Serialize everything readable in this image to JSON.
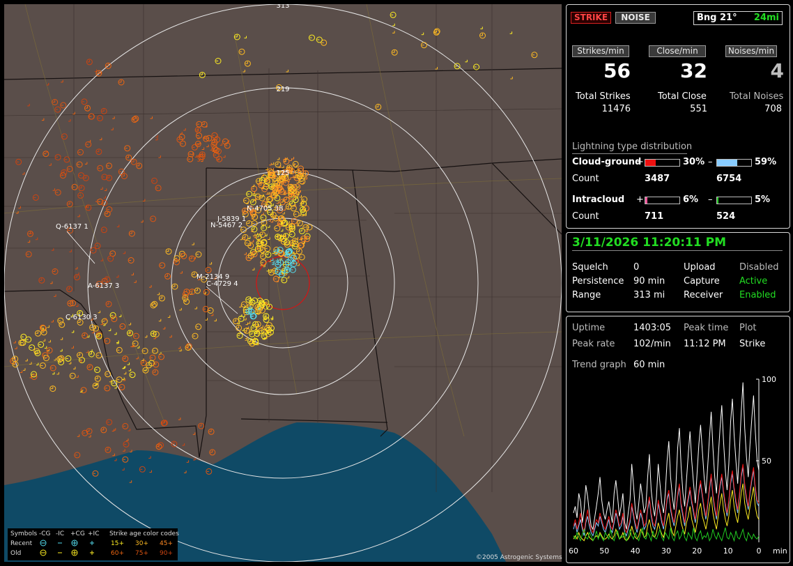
{
  "map": {
    "range_labels": [
      "313",
      "219",
      "125"
    ],
    "strike_labels": [
      "Q-6137 1",
      "N-4705 38",
      "J-5839 1",
      "N-5467 2",
      "A-6137 3",
      "M-2134 9",
      "C-4729 4",
      "C-6130 3"
    ],
    "legend": {
      "symbols_label": "Symbols",
      "types": [
        "-CG",
        "-IC",
        "+CG",
        "+IC"
      ],
      "age_title": "Strike age color codes",
      "recent_label": "Recent",
      "old_label": "Old",
      "recent_ages": [
        "15+",
        "30+",
        "45+"
      ],
      "old_ages": [
        "60+",
        "75+",
        "90+"
      ],
      "age_colors": [
        "#ffee22",
        "#ffbb22",
        "#ff8822",
        "#ee6611",
        "#dd5511",
        "#cc4411"
      ]
    },
    "copyright": "©2005 Astrogenic Systems",
    "colors": {
      "land": "#5a4e4a",
      "water": "#0f4a66",
      "ring": "#e8e8e8"
    }
  },
  "mode": {
    "strike_label": "STRIKE",
    "noise_label": "NOISE",
    "bearing_label": "Bng 21°",
    "distance": "24mi"
  },
  "rates": {
    "strikes_label": "Strikes/min",
    "strikes": "56",
    "close_label": "Close/min",
    "close": "32",
    "noises_label": "Noises/min",
    "noises": "4"
  },
  "totals": {
    "strikes_label": "Total Strikes",
    "strikes": "11476",
    "close_label": "Total Close",
    "close": "551",
    "noises_label": "Total Noises",
    "noises": "708"
  },
  "distribution": {
    "title": "Lightning type distribution",
    "cg_label": "Cloud-ground",
    "cg_pos_pct": "30%",
    "cg_pos_fraction": 0.3,
    "cg_neg_pct": "59%",
    "cg_neg_fraction": 0.59,
    "count_label": "Count",
    "cg_pos_count": "3487",
    "cg_neg_count": "6754",
    "ic_label": "Intracloud",
    "ic_pos_pct": "6%",
    "ic_pos_fraction": 0.06,
    "ic_neg_pct": "5%",
    "ic_neg_fraction": 0.05,
    "ic_pos_count": "711",
    "ic_neg_count": "524",
    "plus": "+",
    "minus": "–",
    "colors": {
      "cg_pos": "#ee1111",
      "cg_neg": "#88ccff",
      "ic_pos": "#ee5599",
      "ic_neg": "#22cc22"
    }
  },
  "status": {
    "datetime": "3/11/2026 11:20:11 PM",
    "squelch_label": "Squelch",
    "squelch": "0",
    "persistence_label": "Persistence",
    "persistence": "90 min",
    "range_label": "Range",
    "range": "313 mi",
    "upload_label": "Upload",
    "upload": "Disabled",
    "capture_label": "Capture",
    "capture": "Active",
    "receiver_label": "Receiver",
    "receiver": "Enabled"
  },
  "stats": {
    "uptime_label": "Uptime",
    "uptime": "1403:05",
    "peak_time_label": "Peak time",
    "peak_time": "11:12 PM",
    "plot_label": "Plot",
    "plot": "Strike",
    "peak_rate_label": "Peak rate",
    "peak_rate": "102/min",
    "trend_label": "Trend graph",
    "trend": "60 min"
  },
  "trend": {
    "y_ticks": [
      "100",
      "50"
    ],
    "x_ticks": [
      "60",
      "50",
      "40",
      "30",
      "20",
      "10",
      "0"
    ],
    "x_unit": "min",
    "series": [
      {
        "color": "#ffffff",
        "values": [
          18,
          22,
          15,
          30,
          25,
          12,
          20,
          35,
          28,
          18,
          10,
          8,
          15,
          22,
          30,
          40,
          26,
          18,
          14,
          20,
          25,
          18,
          12,
          30,
          38,
          28,
          16,
          22,
          30,
          12,
          8,
          18,
          26,
          48,
          35,
          20,
          14,
          24,
          36,
          28,
          18,
          22,
          40,
          54,
          32,
          22,
          16,
          28,
          48,
          36,
          24,
          18,
          30,
          50,
          62,
          40,
          28,
          20,
          34,
          58,
          70,
          46,
          30,
          22,
          38,
          54,
          68,
          50,
          36,
          24,
          42,
          60,
          72,
          56,
          40,
          30,
          46,
          64,
          80,
          58,
          40,
          30,
          52,
          70,
          84,
          62,
          44,
          32,
          48,
          74,
          88,
          66,
          50,
          36,
          56,
          80,
          98,
          70,
          52,
          40,
          60,
          76,
          90,
          68,
          50,
          44
        ]
      },
      {
        "color": "#88ccff",
        "values": [
          8,
          12,
          6,
          10,
          14,
          8,
          4,
          12,
          16,
          10,
          6,
          4,
          8,
          12,
          10,
          16,
          12,
          8,
          6,
          10,
          14,
          8,
          6,
          12,
          18,
          14,
          8,
          10,
          16,
          6,
          4,
          8,
          12,
          22,
          16,
          10,
          6,
          12,
          18,
          14,
          8,
          10,
          20,
          26,
          16,
          10,
          8,
          14,
          24,
          18,
          12,
          8,
          16,
          26,
          30,
          20,
          14,
          10,
          18,
          28,
          34,
          22,
          16,
          10,
          20,
          26,
          32,
          24,
          18,
          12,
          20,
          30,
          36,
          28,
          20,
          14,
          22,
          32,
          40,
          28,
          20,
          14,
          26,
          34,
          40,
          30,
          22,
          16,
          24,
          36,
          42,
          32,
          24,
          18,
          28,
          40,
          46,
          34,
          26,
          20,
          30,
          38,
          44,
          32,
          24,
          22
        ]
      },
      {
        "color": "#ee1111",
        "values": [
          10,
          14,
          8,
          12,
          18,
          10,
          6,
          14,
          20,
          12,
          8,
          6,
          10,
          14,
          12,
          18,
          14,
          10,
          8,
          12,
          16,
          10,
          8,
          14,
          20,
          16,
          10,
          12,
          18,
          8,
          6,
          10,
          14,
          24,
          18,
          12,
          8,
          14,
          20,
          16,
          10,
          12,
          22,
          28,
          18,
          12,
          10,
          16,
          26,
          20,
          14,
          10,
          18,
          28,
          32,
          22,
          16,
          12,
          20,
          30,
          36,
          24,
          18,
          12,
          22,
          28,
          34,
          26,
          20,
          14,
          22,
          32,
          38,
          30,
          22,
          16,
          24,
          34,
          42,
          30,
          22,
          16,
          28,
          36,
          42,
          32,
          24,
          18,
          26,
          38,
          44,
          34,
          26,
          20,
          30,
          42,
          48,
          36,
          28,
          22,
          32,
          40,
          46,
          34,
          26,
          24
        ]
      },
      {
        "color": "#ffee22",
        "values": [
          2,
          4,
          2,
          6,
          3,
          2,
          1,
          4,
          6,
          3,
          2,
          1,
          3,
          4,
          3,
          6,
          4,
          2,
          2,
          3,
          5,
          3,
          2,
          4,
          8,
          5,
          2,
          3,
          6,
          2,
          1,
          2,
          4,
          10,
          6,
          3,
          2,
          4,
          8,
          6,
          3,
          4,
          10,
          14,
          8,
          4,
          3,
          6,
          12,
          8,
          5,
          3,
          8,
          14,
          18,
          10,
          6,
          4,
          10,
          16,
          20,
          12,
          8,
          5,
          12,
          16,
          22,
          14,
          10,
          6,
          12,
          20,
          24,
          16,
          12,
          8,
          14,
          22,
          28,
          18,
          12,
          8,
          16,
          24,
          30,
          20,
          14,
          10,
          16,
          26,
          32,
          22,
          16,
          12,
          20,
          30,
          36,
          24,
          18,
          14,
          22,
          28,
          34,
          22,
          16,
          14
        ]
      },
      {
        "color": "#22cc22",
        "values": [
          4,
          2,
          6,
          3,
          1,
          5,
          8,
          3,
          2,
          6,
          4,
          1,
          3,
          7,
          2,
          5,
          3,
          1,
          6,
          4,
          2,
          8,
          3,
          1,
          5,
          7,
          2,
          4,
          3,
          6,
          1,
          3,
          8,
          4,
          2,
          6,
          3,
          1,
          5,
          9,
          3,
          2,
          6,
          4,
          1,
          7,
          3,
          2,
          5,
          8,
          3,
          1,
          6,
          4,
          2,
          9,
          3,
          1,
          5,
          7,
          2,
          4,
          8,
          3,
          1,
          6,
          4,
          2,
          9,
          3,
          1,
          5,
          7,
          2,
          4,
          3,
          6,
          1,
          3,
          8,
          4,
          2,
          6,
          3,
          1,
          5,
          9,
          3,
          2,
          6,
          4,
          1,
          7,
          3,
          2,
          5,
          8,
          3,
          1,
          6,
          4,
          2,
          5,
          3,
          2,
          4
        ]
      }
    ]
  }
}
